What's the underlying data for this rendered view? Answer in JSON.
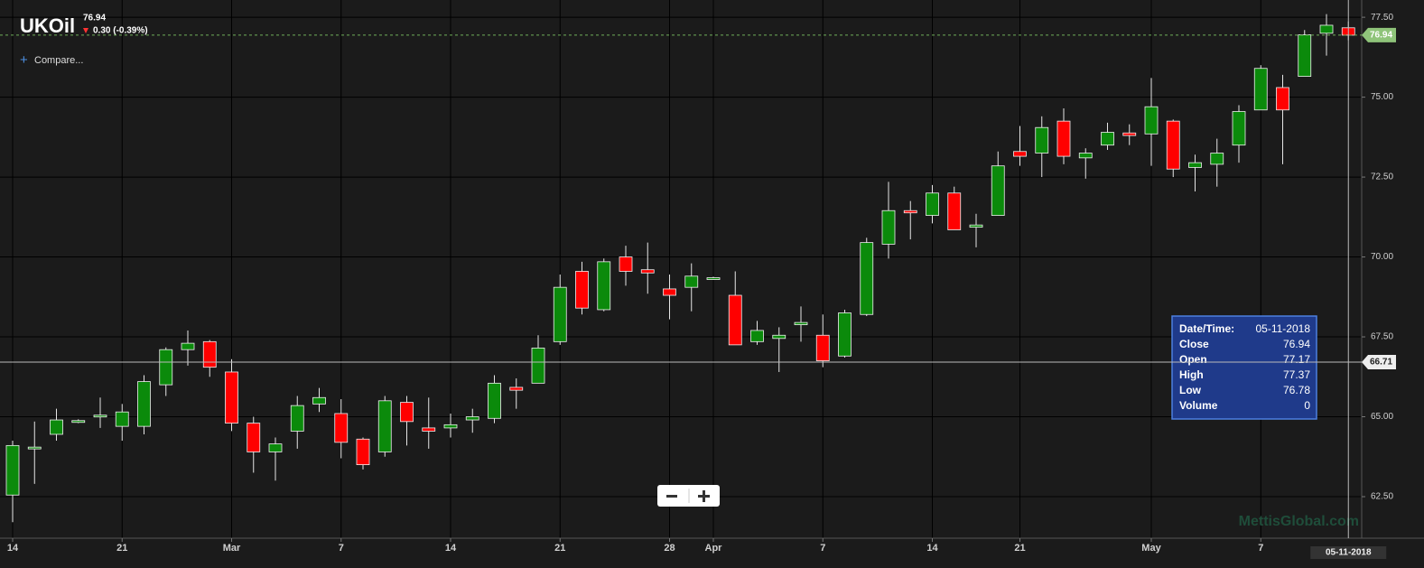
{
  "header": {
    "symbol": "UKOil",
    "change": "0.30 (-0.39%)",
    "compare": "Compare..."
  },
  "chart_data": {
    "type": "candlestick",
    "categories": [
      "14",
      null,
      null,
      null,
      null,
      "21",
      null,
      null,
      null,
      null,
      "Mar",
      null,
      null,
      null,
      null,
      "7",
      null,
      null,
      null,
      null,
      "14",
      null,
      null,
      null,
      null,
      "21",
      null,
      null,
      null,
      null,
      "28",
      null,
      "Apr",
      null,
      null,
      null,
      null,
      "7",
      null,
      null,
      null,
      null,
      "14",
      null,
      null,
      null,
      "21",
      null,
      null,
      null,
      null,
      null,
      "May",
      null,
      null,
      null,
      null,
      "7",
      null,
      null,
      null,
      null
    ],
    "open": [
      62.55,
      64.05,
      64.45,
      64.85,
      65.0,
      64.7,
      64.7,
      66.0,
      67.1,
      67.35,
      66.4,
      64.8,
      63.9,
      64.55,
      65.4,
      65.1,
      64.3,
      63.9,
      65.45,
      64.65,
      64.65,
      64.9,
      64.95,
      65.92,
      66.05,
      67.35,
      69.55,
      68.35,
      70.0,
      69.6,
      69.0,
      69.05,
      69.35,
      68.8,
      67.35,
      67.45,
      67.88,
      67.55,
      66.9,
      68.2,
      70.4,
      71.45,
      71.3,
      72.0,
      70.93,
      71.3,
      73.3,
      73.25,
      74.25,
      73.1,
      73.5,
      73.88,
      73.85,
      74.25,
      72.8,
      72.9,
      73.5,
      74.6,
      75.3,
      75.65,
      77.0,
      77.17
    ],
    "high": [
      64.25,
      64.85,
      65.25,
      64.92,
      65.6,
      65.4,
      66.3,
      67.17,
      67.7,
      67.4,
      66.8,
      65.0,
      64.35,
      65.65,
      65.9,
      65.55,
      64.35,
      65.65,
      65.65,
      65.6,
      65.1,
      65.25,
      66.3,
      66.2,
      67.55,
      69.45,
      69.85,
      69.95,
      70.35,
      70.45,
      69.45,
      69.8,
      69.38,
      69.55,
      68.0,
      67.8,
      68.45,
      68.2,
      68.35,
      70.6,
      72.35,
      71.75,
      72.25,
      72.2,
      71.35,
      73.3,
      74.1,
      74.4,
      74.65,
      73.4,
      74.2,
      74.15,
      75.6,
      74.3,
      73.2,
      73.7,
      74.75,
      76.0,
      75.7,
      77.1,
      77.6,
      77.37
    ],
    "low": [
      61.7,
      62.9,
      64.25,
      64.8,
      64.65,
      64.25,
      64.45,
      65.65,
      66.6,
      66.25,
      64.55,
      63.25,
      63.0,
      64.0,
      65.15,
      63.7,
      63.35,
      63.75,
      64.1,
      64.0,
      64.35,
      64.5,
      64.8,
      65.25,
      66.05,
      67.25,
      68.2,
      68.3,
      69.1,
      68.85,
      68.05,
      68.3,
      69.32,
      67.25,
      67.25,
      66.4,
      67.35,
      66.55,
      66.85,
      68.15,
      69.95,
      70.55,
      71.05,
      70.85,
      70.3,
      71.3,
      72.85,
      72.5,
      72.9,
      72.45,
      73.35,
      73.5,
      72.85,
      72.5,
      72.05,
      72.2,
      72.95,
      74.6,
      72.9,
      75.65,
      76.3,
      76.78
    ],
    "close": [
      64.1,
      64.05,
      64.9,
      64.88,
      65.05,
      65.15,
      66.1,
      67.1,
      67.3,
      66.55,
      64.8,
      63.9,
      64.15,
      65.35,
      65.6,
      64.2,
      63.5,
      65.5,
      64.85,
      64.55,
      64.75,
      65.0,
      66.05,
      65.83,
      67.15,
      69.05,
      68.4,
      69.85,
      69.55,
      69.5,
      68.8,
      69.4,
      69.35,
      67.25,
      67.7,
      67.55,
      67.95,
      66.75,
      68.25,
      70.45,
      71.45,
      71.38,
      72.0,
      70.85,
      71.0,
      72.85,
      73.15,
      74.05,
      73.15,
      73.25,
      73.9,
      73.8,
      74.7,
      72.75,
      72.95,
      73.25,
      74.55,
      75.9,
      74.6,
      76.95,
      77.25,
      76.94
    ],
    "up_color": "#0b8a0b",
    "down_color": "#ff0000",
    "ylim": [
      61.2,
      78.04
    ],
    "yticks": [
      {
        "value": 62.5,
        "label": "62.50"
      },
      {
        "value": 65,
        "label": "65.00"
      },
      {
        "value": 67.5,
        "label": "67.50"
      },
      {
        "value": 70,
        "label": "70.00"
      },
      {
        "value": 72.5,
        "label": "72.50"
      },
      {
        "value": 75,
        "label": "75.00"
      },
      {
        "value": 77.5,
        "label": "77.50"
      }
    ],
    "grid": true,
    "crosshair": 66.71
  },
  "tooltip": {
    "labels": [
      "Date/Time:",
      "Close",
      "Open",
      "High",
      "Low",
      "Volume"
    ],
    "date": "05-11-2018",
    "volume": 0
  },
  "watermark": "MettisGlobal.com"
}
